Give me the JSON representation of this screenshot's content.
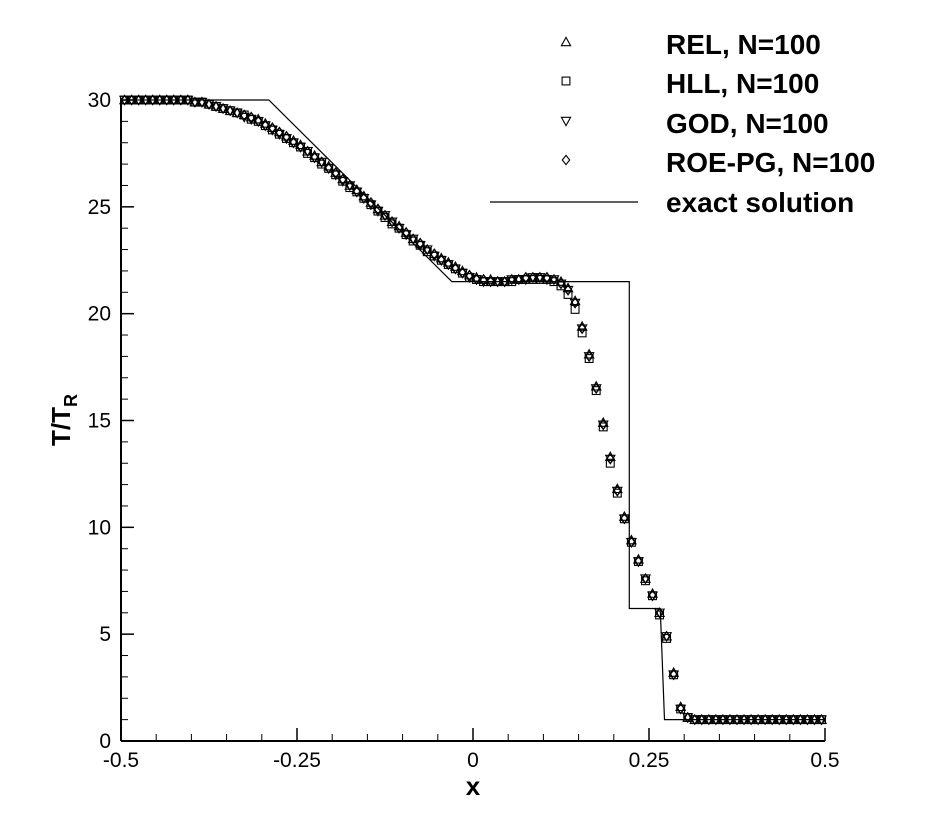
{
  "chart_data": {
    "type": "scatter",
    "title": "",
    "xlabel": "x",
    "ylabel_main": "T/T",
    "ylabel_sub": "R",
    "xlim": [
      -0.5,
      0.5
    ],
    "ylim": [
      0,
      30
    ],
    "x_ticks": [
      -0.5,
      -0.25,
      0,
      0.25,
      0.5
    ],
    "x_tick_labels": [
      "-0.5",
      "-0.25",
      "0",
      "0.25",
      "0.5"
    ],
    "y_ticks": [
      0,
      5,
      10,
      15,
      20,
      25,
      30
    ],
    "y_tick_labels": [
      "0",
      "5",
      "10",
      "15",
      "20",
      "25",
      "30"
    ],
    "grid": false,
    "legend_position": "top-right",
    "series": [
      {
        "name": "REL, N=100",
        "marker": "triangle-up",
        "color": "#000000",
        "x": [
          -0.495,
          -0.485,
          -0.475,
          -0.465,
          -0.455,
          -0.445,
          -0.435,
          -0.425,
          -0.415,
          -0.405,
          -0.395,
          -0.385,
          -0.375,
          -0.365,
          -0.355,
          -0.345,
          -0.335,
          -0.325,
          -0.315,
          -0.305,
          -0.295,
          -0.285,
          -0.275,
          -0.265,
          -0.255,
          -0.245,
          -0.235,
          -0.225,
          -0.215,
          -0.205,
          -0.195,
          -0.185,
          -0.175,
          -0.165,
          -0.155,
          -0.145,
          -0.135,
          -0.125,
          -0.115,
          -0.105,
          -0.095,
          -0.085,
          -0.075,
          -0.065,
          -0.055,
          -0.045,
          -0.035,
          -0.025,
          -0.015,
          -0.005,
          0.005,
          0.015,
          0.025,
          0.035,
          0.045,
          0.055,
          0.065,
          0.075,
          0.085,
          0.095,
          0.105,
          0.115,
          0.125,
          0.135,
          0.145,
          0.155,
          0.165,
          0.175,
          0.185,
          0.195,
          0.205,
          0.215,
          0.225,
          0.235,
          0.245,
          0.255,
          0.265,
          0.275,
          0.285,
          0.295,
          0.305,
          0.315,
          0.325,
          0.335,
          0.345,
          0.355,
          0.365,
          0.375,
          0.385,
          0.395,
          0.405,
          0.415,
          0.425,
          0.435,
          0.445,
          0.455,
          0.465,
          0.475,
          0.485,
          0.495
        ],
        "y": [
          30.0,
          30.0,
          30.0,
          30.0,
          30.0,
          30.0,
          30.0,
          30.0,
          30.0,
          30.0,
          29.9,
          29.9,
          29.8,
          29.7,
          29.6,
          29.5,
          29.4,
          29.3,
          29.2,
          29.1,
          28.9,
          28.7,
          28.5,
          28.3,
          28.1,
          27.9,
          27.6,
          27.4,
          27.1,
          26.9,
          26.6,
          26.3,
          26.0,
          25.8,
          25.5,
          25.2,
          24.9,
          24.6,
          24.3,
          24.1,
          23.8,
          23.5,
          23.3,
          23.0,
          22.8,
          22.6,
          22.4,
          22.2,
          22.0,
          21.8,
          21.7,
          21.6,
          21.6,
          21.5,
          21.5,
          21.6,
          21.6,
          21.7,
          21.7,
          21.7,
          21.7,
          21.6,
          21.5,
          21.2,
          20.6,
          19.4,
          18.1,
          16.6,
          14.9,
          13.3,
          11.8,
          10.5,
          9.4,
          8.5,
          7.6,
          6.9,
          6.0,
          4.9,
          3.2,
          1.6,
          1.1,
          1.0,
          1.0,
          1.0,
          1.0,
          1.0,
          1.0,
          1.0,
          1.0,
          1.0,
          1.0,
          1.0,
          1.0,
          1.0,
          1.0,
          1.0,
          1.0,
          1.0,
          1.0,
          1.0
        ]
      },
      {
        "name": "HLL, N=100",
        "marker": "square",
        "color": "#000000",
        "x": [
          -0.495,
          -0.485,
          -0.475,
          -0.465,
          -0.455,
          -0.445,
          -0.435,
          -0.425,
          -0.415,
          -0.405,
          -0.395,
          -0.385,
          -0.375,
          -0.365,
          -0.355,
          -0.345,
          -0.335,
          -0.325,
          -0.315,
          -0.305,
          -0.295,
          -0.285,
          -0.275,
          -0.265,
          -0.255,
          -0.245,
          -0.235,
          -0.225,
          -0.215,
          -0.205,
          -0.195,
          -0.185,
          -0.175,
          -0.165,
          -0.155,
          -0.145,
          -0.135,
          -0.125,
          -0.115,
          -0.105,
          -0.095,
          -0.085,
          -0.075,
          -0.065,
          -0.055,
          -0.045,
          -0.035,
          -0.025,
          -0.015,
          -0.005,
          0.005,
          0.015,
          0.025,
          0.035,
          0.045,
          0.055,
          0.065,
          0.075,
          0.085,
          0.095,
          0.105,
          0.115,
          0.125,
          0.135,
          0.145,
          0.155,
          0.165,
          0.175,
          0.185,
          0.195,
          0.205,
          0.215,
          0.225,
          0.235,
          0.245,
          0.255,
          0.265,
          0.275,
          0.285,
          0.295,
          0.305,
          0.315,
          0.325,
          0.335,
          0.345,
          0.355,
          0.365,
          0.375,
          0.385,
          0.395,
          0.405,
          0.415,
          0.425,
          0.435,
          0.445,
          0.455,
          0.465,
          0.475,
          0.485,
          0.495
        ],
        "y": [
          30.0,
          30.0,
          30.0,
          30.0,
          30.0,
          30.0,
          30.0,
          30.0,
          30.0,
          30.0,
          29.9,
          29.9,
          29.8,
          29.7,
          29.6,
          29.5,
          29.4,
          29.3,
          29.1,
          29.0,
          28.8,
          28.6,
          28.4,
          28.2,
          28.0,
          27.8,
          27.5,
          27.3,
          27.0,
          26.8,
          26.5,
          26.2,
          25.9,
          25.7,
          25.4,
          25.1,
          24.8,
          24.5,
          24.2,
          24.0,
          23.7,
          23.4,
          23.2,
          22.9,
          22.7,
          22.5,
          22.3,
          22.1,
          21.9,
          21.7,
          21.6,
          21.5,
          21.5,
          21.5,
          21.5,
          21.5,
          21.6,
          21.6,
          21.6,
          21.6,
          21.6,
          21.5,
          21.3,
          20.9,
          20.2,
          19.1,
          17.9,
          16.4,
          14.7,
          13.0,
          11.6,
          10.4,
          9.3,
          8.4,
          7.5,
          6.8,
          5.9,
          4.8,
          3.1,
          1.5,
          1.1,
          1.0,
          1.0,
          1.0,
          1.0,
          1.0,
          1.0,
          1.0,
          1.0,
          1.0,
          1.0,
          1.0,
          1.0,
          1.0,
          1.0,
          1.0,
          1.0,
          1.0,
          1.0,
          1.0
        ]
      },
      {
        "name": "GOD, N=100",
        "marker": "triangle-down",
        "color": "#000000",
        "x": [
          -0.495,
          -0.485,
          -0.475,
          -0.465,
          -0.455,
          -0.445,
          -0.435,
          -0.425,
          -0.415,
          -0.405,
          -0.395,
          -0.385,
          -0.375,
          -0.365,
          -0.355,
          -0.345,
          -0.335,
          -0.325,
          -0.315,
          -0.305,
          -0.295,
          -0.285,
          -0.275,
          -0.265,
          -0.255,
          -0.245,
          -0.235,
          -0.225,
          -0.215,
          -0.205,
          -0.195,
          -0.185,
          -0.175,
          -0.165,
          -0.155,
          -0.145,
          -0.135,
          -0.125,
          -0.115,
          -0.105,
          -0.095,
          -0.085,
          -0.075,
          -0.065,
          -0.055,
          -0.045,
          -0.035,
          -0.025,
          -0.015,
          -0.005,
          0.005,
          0.015,
          0.025,
          0.035,
          0.045,
          0.055,
          0.065,
          0.075,
          0.085,
          0.095,
          0.105,
          0.115,
          0.125,
          0.135,
          0.145,
          0.155,
          0.165,
          0.175,
          0.185,
          0.195,
          0.205,
          0.215,
          0.225,
          0.235,
          0.245,
          0.255,
          0.265,
          0.275,
          0.285,
          0.295,
          0.305,
          0.315,
          0.325,
          0.335,
          0.345,
          0.355,
          0.365,
          0.375,
          0.385,
          0.395,
          0.405,
          0.415,
          0.425,
          0.435,
          0.445,
          0.455,
          0.465,
          0.475,
          0.485,
          0.495
        ],
        "y": [
          30.0,
          30.0,
          30.0,
          30.0,
          30.0,
          30.0,
          30.0,
          30.0,
          30.0,
          30.0,
          29.9,
          29.9,
          29.8,
          29.7,
          29.6,
          29.5,
          29.4,
          29.2,
          29.1,
          29.0,
          28.8,
          28.6,
          28.4,
          28.2,
          28.0,
          27.8,
          27.6,
          27.3,
          27.1,
          26.8,
          26.5,
          26.2,
          26.0,
          25.7,
          25.4,
          25.1,
          24.8,
          24.6,
          24.3,
          24.0,
          23.7,
          23.5,
          23.2,
          23.0,
          22.7,
          22.5,
          22.3,
          22.1,
          21.9,
          21.7,
          21.6,
          21.5,
          21.5,
          21.5,
          21.5,
          21.6,
          21.6,
          21.6,
          21.7,
          21.7,
          21.6,
          21.6,
          21.4,
          21.1,
          20.5,
          19.3,
          18.0,
          16.5,
          14.8,
          13.2,
          11.7,
          10.4,
          9.3,
          8.4,
          7.6,
          6.8,
          6.0,
          4.9,
          3.1,
          1.5,
          1.1,
          1.0,
          1.0,
          1.0,
          1.0,
          1.0,
          1.0,
          1.0,
          1.0,
          1.0,
          1.0,
          1.0,
          1.0,
          1.0,
          1.0,
          1.0,
          1.0,
          1.0,
          1.0,
          1.0
        ]
      },
      {
        "name": "ROE-PG, N=100",
        "marker": "diamond",
        "color": "#000000",
        "x": [
          -0.495,
          -0.485,
          -0.475,
          -0.465,
          -0.455,
          -0.445,
          -0.435,
          -0.425,
          -0.415,
          -0.405,
          -0.395,
          -0.385,
          -0.375,
          -0.365,
          -0.355,
          -0.345,
          -0.335,
          -0.325,
          -0.315,
          -0.305,
          -0.295,
          -0.285,
          -0.275,
          -0.265,
          -0.255,
          -0.245,
          -0.235,
          -0.225,
          -0.215,
          -0.205,
          -0.195,
          -0.185,
          -0.175,
          -0.165,
          -0.155,
          -0.145,
          -0.135,
          -0.125,
          -0.115,
          -0.105,
          -0.095,
          -0.085,
          -0.075,
          -0.065,
          -0.055,
          -0.045,
          -0.035,
          -0.025,
          -0.015,
          -0.005,
          0.005,
          0.015,
          0.025,
          0.035,
          0.045,
          0.055,
          0.065,
          0.075,
          0.085,
          0.095,
          0.105,
          0.115,
          0.125,
          0.135,
          0.145,
          0.155,
          0.165,
          0.175,
          0.185,
          0.195,
          0.205,
          0.215,
          0.225,
          0.235,
          0.245,
          0.255,
          0.265,
          0.275,
          0.285,
          0.295,
          0.305,
          0.315,
          0.325,
          0.335,
          0.345,
          0.355,
          0.365,
          0.375,
          0.385,
          0.395,
          0.405,
          0.415,
          0.425,
          0.435,
          0.445,
          0.455,
          0.465,
          0.475,
          0.485,
          0.495
        ],
        "y": [
          30.0,
          30.0,
          30.0,
          30.0,
          30.0,
          30.0,
          30.0,
          30.0,
          30.0,
          30.0,
          29.9,
          29.9,
          29.8,
          29.7,
          29.6,
          29.5,
          29.4,
          29.3,
          29.2,
          29.0,
          28.8,
          28.7,
          28.5,
          28.3,
          28.0,
          27.8,
          27.6,
          27.3,
          27.1,
          26.8,
          26.6,
          26.3,
          26.0,
          25.7,
          25.4,
          25.2,
          24.9,
          24.6,
          24.3,
          24.0,
          23.8,
          23.5,
          23.3,
          23.0,
          22.8,
          22.5,
          22.3,
          22.1,
          21.9,
          21.8,
          21.6,
          21.6,
          21.5,
          21.5,
          21.5,
          21.6,
          21.6,
          21.7,
          21.7,
          21.7,
          21.7,
          21.6,
          21.4,
          21.1,
          20.5,
          19.3,
          18.0,
          16.5,
          14.8,
          13.2,
          11.7,
          10.4,
          9.3,
          8.4,
          7.6,
          6.8,
          6.0,
          4.9,
          3.1,
          1.5,
          1.1,
          1.0,
          1.0,
          1.0,
          1.0,
          1.0,
          1.0,
          1.0,
          1.0,
          1.0,
          1.0,
          1.0,
          1.0,
          1.0,
          1.0,
          1.0,
          1.0,
          1.0,
          1.0,
          1.0
        ]
      },
      {
        "name": "exact solution",
        "marker": "line",
        "color": "#000000",
        "x": [
          -0.5,
          -0.29,
          -0.03,
          0.218,
          0.218,
          0.222,
          0.222,
          0.266,
          0.266,
          0.272,
          0.272,
          0.5
        ],
        "y": [
          30,
          30,
          21.5,
          21.5,
          21.5,
          21.5,
          6.2,
          6.2,
          6.2,
          1.0,
          1.0,
          1.0
        ]
      }
    ]
  }
}
